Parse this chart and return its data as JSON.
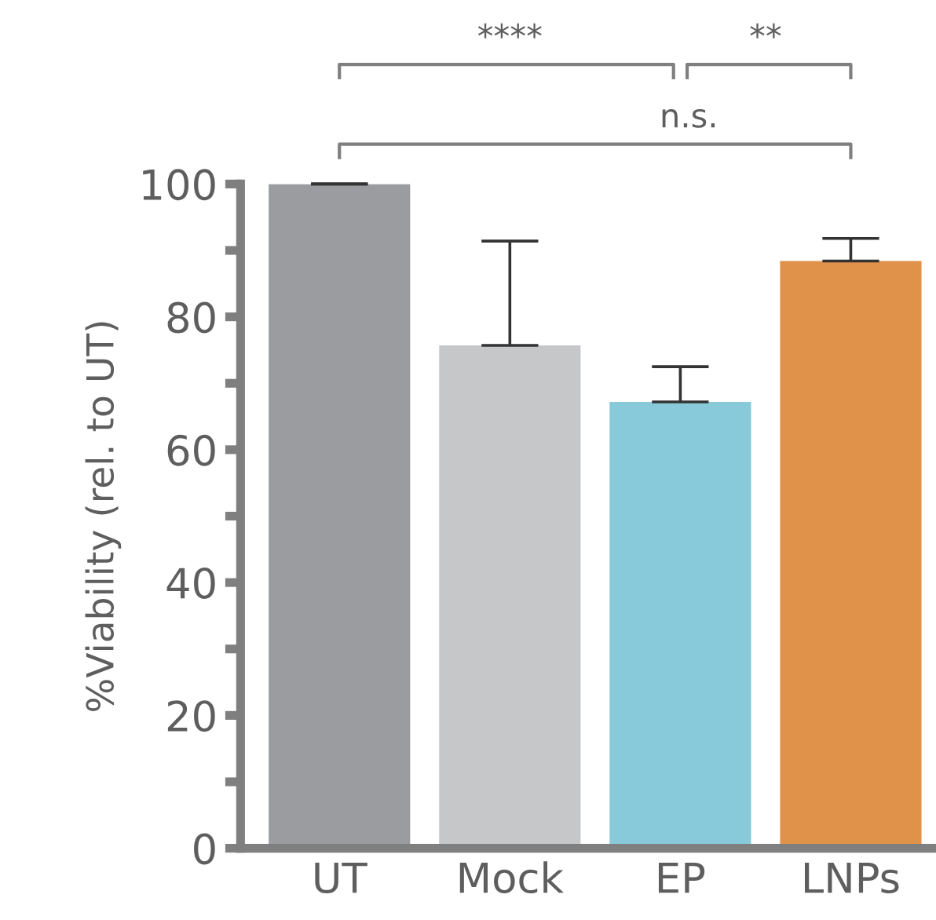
{
  "chart_data": {
    "type": "bar",
    "ylabel": "%Viability (rel. to UT)",
    "categories": [
      "UT",
      "Mock",
      "EP",
      "LNPs"
    ],
    "values": [
      100,
      75.7,
      67.2,
      88.4
    ],
    "colors": [
      "#9b9ca0",
      "#c6c7c9",
      "#88cad9",
      "#e0924a"
    ],
    "errors": [
      [
        100,
        100
      ],
      [
        75.7,
        91.4
      ],
      [
        67.2,
        72.5
      ],
      [
        88.4,
        91.8
      ]
    ],
    "ylim": [
      0,
      100
    ],
    "yticks": [
      0,
      {
        "value": 10,
        "label": null
      },
      20,
      {
        "value": 30,
        "label": null
      },
      40,
      {
        "value": 50,
        "label": null
      },
      60,
      {
        "value": 70,
        "label": null
      },
      80,
      {
        "value": 90,
        "label": null
      },
      100
    ],
    "grid": false,
    "legend": false,
    "annotations": [
      "****",
      "**",
      "n.s."
    ]
  }
}
